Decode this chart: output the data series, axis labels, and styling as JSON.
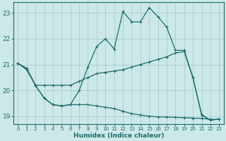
{
  "xlabel": "Humidex (Indice chaleur)",
  "background_color": "#cce8e8",
  "line_color": "#1e6b6b",
  "grid_color": "#aacccc",
  "xlim": [
    -0.5,
    23.5
  ],
  "ylim": [
    18.7,
    23.4
  ],
  "yticks": [
    19,
    20,
    21,
    22,
    23
  ],
  "xticks": [
    0,
    1,
    2,
    3,
    4,
    5,
    6,
    7,
    8,
    9,
    10,
    11,
    12,
    13,
    14,
    15,
    16,
    17,
    18,
    19,
    20,
    21,
    22,
    23
  ],
  "line_top_x": [
    0,
    1,
    2,
    3,
    4,
    5,
    6,
    7,
    8,
    9,
    10,
    11,
    12,
    13,
    14,
    15,
    16,
    17,
    18,
    19,
    20,
    21,
    22,
    23
  ],
  "line_top_y": [
    21.05,
    20.8,
    20.2,
    19.7,
    19.45,
    19.4,
    19.45,
    20.0,
    20.9,
    21.7,
    22.0,
    21.6,
    23.05,
    22.65,
    22.65,
    23.2,
    22.85,
    22.45,
    21.55,
    21.55,
    20.5,
    19.05,
    18.85,
    18.9
  ],
  "line_mid_x": [
    0,
    1,
    2,
    3,
    4,
    5,
    6,
    7,
    8,
    9,
    10,
    11,
    12,
    13,
    14,
    15,
    16,
    17,
    18,
    19,
    20,
    21,
    22,
    23
  ],
  "line_mid_y": [
    21.05,
    20.85,
    20.2,
    20.2,
    20.2,
    20.2,
    20.2,
    20.35,
    20.5,
    20.65,
    20.7,
    20.75,
    20.8,
    20.9,
    21.0,
    21.1,
    21.2,
    21.3,
    21.45,
    21.5,
    20.5,
    19.05,
    18.85,
    18.9
  ],
  "line_bot_x": [
    0,
    1,
    2,
    3,
    4,
    5,
    6,
    7,
    8,
    9,
    10,
    11,
    12,
    13,
    14,
    15,
    16,
    17,
    18,
    19,
    20,
    21,
    22,
    23
  ],
  "line_bot_y": [
    21.05,
    20.85,
    20.2,
    19.7,
    19.45,
    19.4,
    19.45,
    19.45,
    19.45,
    19.4,
    19.35,
    19.3,
    19.2,
    19.1,
    19.05,
    19.0,
    18.98,
    18.97,
    18.96,
    18.95,
    18.93,
    18.92,
    18.88,
    18.88
  ]
}
